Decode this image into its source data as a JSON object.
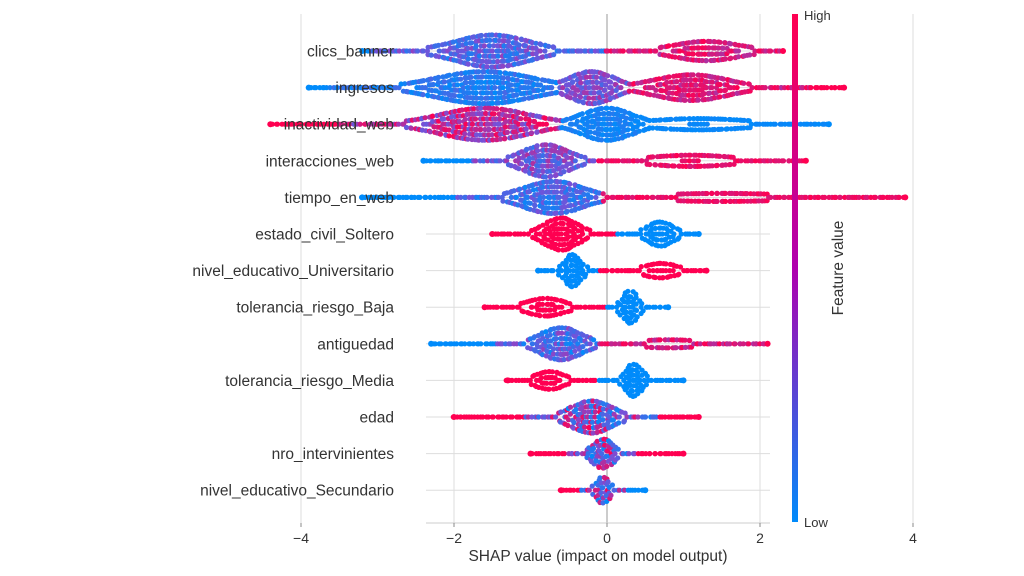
{
  "chart_data": {
    "type": "scatter",
    "subtype": "shap-beeswarm",
    "xlabel": "SHAP value (impact on model output)",
    "xlim": [
      -4.4,
      4.2
    ],
    "xticks": [
      -4,
      -2,
      0,
      2,
      4
    ],
    "xtick_labels": [
      "−4",
      "−2",
      "0",
      "2",
      "4"
    ],
    "grid": true,
    "colorbar": {
      "title": "Feature value",
      "high_label": "High",
      "low_label": "Low",
      "high_color": "#ff0051",
      "mid_color": "#b000ae",
      "low_color": "#008bfb",
      "placement": "right"
    },
    "features": [
      {
        "name": "clics_banner",
        "min": -3.2,
        "max": 2.3,
        "modes": [
          {
            "x": -1.5,
            "w": 1.0,
            "peak": 1.0,
            "vmin": 0.1,
            "vmax": 0.6
          },
          {
            "x": 1.3,
            "w": 0.9,
            "peak": 0.6,
            "vmin": 0.7,
            "vmax": 1.0
          }
        ],
        "tail_left_value": 0.0,
        "tail_right_value": 1.0
      },
      {
        "name": "ingresos",
        "min": -3.9,
        "max": 3.1,
        "modes": [
          {
            "x": -1.6,
            "w": 1.3,
            "peak": 1.0,
            "vmin": 0.0,
            "vmax": 0.3
          },
          {
            "x": -0.2,
            "w": 0.6,
            "peak": 1.0,
            "vmin": 0.3,
            "vmax": 0.7
          },
          {
            "x": 1.1,
            "w": 1.0,
            "peak": 0.8,
            "vmin": 0.7,
            "vmax": 1.0
          }
        ],
        "tail_left_value": 0.0,
        "tail_right_value": 1.0
      },
      {
        "name": "inactividad_web",
        "min": -4.4,
        "max": 2.9,
        "modes": [
          {
            "x": -1.6,
            "w": 1.2,
            "peak": 1.0,
            "vmin": 0.4,
            "vmax": 1.0
          },
          {
            "x": 0.0,
            "w": 0.7,
            "peak": 1.0,
            "vmin": 0.0,
            "vmax": 0.15
          },
          {
            "x": 1.2,
            "w": 1.4,
            "peak": 0.35,
            "vmin": 0.0,
            "vmax": 0.05
          }
        ],
        "tail_left_value": 1.0,
        "tail_right_value": 0.0
      },
      {
        "name": "interacciones_web",
        "min": -2.4,
        "max": 2.6,
        "modes": [
          {
            "x": -0.8,
            "w": 0.6,
            "peak": 1.0,
            "vmin": 0.2,
            "vmax": 0.7
          },
          {
            "x": 1.1,
            "w": 1.2,
            "peak": 0.35,
            "vmin": 0.85,
            "vmax": 1.0
          }
        ],
        "tail_left_value": 0.0,
        "tail_right_value": 1.0
      },
      {
        "name": "tiempo_en_web",
        "min": -3.2,
        "max": 3.9,
        "modes": [
          {
            "x": -0.7,
            "w": 0.8,
            "peak": 1.0,
            "vmin": 0.05,
            "vmax": 0.5
          },
          {
            "x": 1.5,
            "w": 2.0,
            "peak": 0.25,
            "vmin": 0.85,
            "vmax": 1.0
          }
        ],
        "tail_left_value": 0.0,
        "tail_right_value": 1.0
      },
      {
        "name": "estado_civil_Soltero",
        "min": -1.5,
        "max": 1.2,
        "modes": [
          {
            "x": -0.6,
            "w": 0.45,
            "peak": 1.0,
            "vmin": 1.0,
            "vmax": 1.0
          },
          {
            "x": 0.7,
            "w": 0.35,
            "peak": 0.75,
            "vmin": 0.0,
            "vmax": 0.0
          }
        ],
        "tail_left_value": 1.0,
        "tail_right_value": 0.0
      },
      {
        "name": "nivel_educativo_Universitario",
        "min": -0.9,
        "max": 1.3,
        "modes": [
          {
            "x": -0.45,
            "w": 0.22,
            "peak": 1.0,
            "vmin": 0.0,
            "vmax": 0.0
          },
          {
            "x": 0.7,
            "w": 0.45,
            "peak": 0.45,
            "vmin": 1.0,
            "vmax": 1.0
          }
        ],
        "tail_left_value": 0.0,
        "tail_right_value": 1.0
      },
      {
        "name": "tolerancia_riesgo_Baja",
        "min": -1.6,
        "max": 0.8,
        "modes": [
          {
            "x": -0.8,
            "w": 0.5,
            "peak": 0.55,
            "vmin": 1.0,
            "vmax": 1.0
          },
          {
            "x": 0.3,
            "w": 0.2,
            "peak": 1.0,
            "vmin": 0.0,
            "vmax": 0.0
          }
        ],
        "tail_left_value": 1.0,
        "tail_right_value": 0.0
      },
      {
        "name": "antiguedad",
        "min": -2.3,
        "max": 2.1,
        "modes": [
          {
            "x": -0.6,
            "w": 0.55,
            "peak": 1.0,
            "vmin": 0.0,
            "vmax": 0.6
          },
          {
            "x": 0.8,
            "w": 1.0,
            "peak": 0.25,
            "vmin": 0.7,
            "vmax": 1.0
          }
        ],
        "tail_left_value": 0.0,
        "tail_right_value": 1.0
      },
      {
        "name": "tolerancia_riesgo_Media",
        "min": -1.3,
        "max": 1.0,
        "modes": [
          {
            "x": -0.75,
            "w": 0.4,
            "peak": 0.55,
            "vmin": 1.0,
            "vmax": 1.0
          },
          {
            "x": 0.35,
            "w": 0.22,
            "peak": 1.0,
            "vmin": 0.0,
            "vmax": 0.0
          }
        ],
        "tail_left_value": 1.0,
        "tail_right_value": 0.0
      },
      {
        "name": "edad",
        "min": -2.0,
        "max": 1.2,
        "modes": [
          {
            "x": -0.2,
            "w": 0.55,
            "peak": 1.0,
            "vmin": 0.0,
            "vmax": 1.0
          }
        ],
        "tail_left_value": 1.0,
        "tail_right_value": 1.0
      },
      {
        "name": "nro_intervinientes",
        "min": -1.0,
        "max": 1.0,
        "modes": [
          {
            "x": -0.05,
            "w": 0.28,
            "peak": 0.9,
            "vmin": 0.0,
            "vmax": 1.0
          }
        ],
        "tail_left_value": 1.0,
        "tail_right_value": 1.0
      },
      {
        "name": "nivel_educativo_Secundario",
        "min": -0.6,
        "max": 0.5,
        "modes": [
          {
            "x": -0.05,
            "w": 0.18,
            "peak": 0.8,
            "vmin": 0.0,
            "vmax": 1.0
          }
        ],
        "tail_left_value": 1.0,
        "tail_right_value": 0.0
      }
    ]
  }
}
